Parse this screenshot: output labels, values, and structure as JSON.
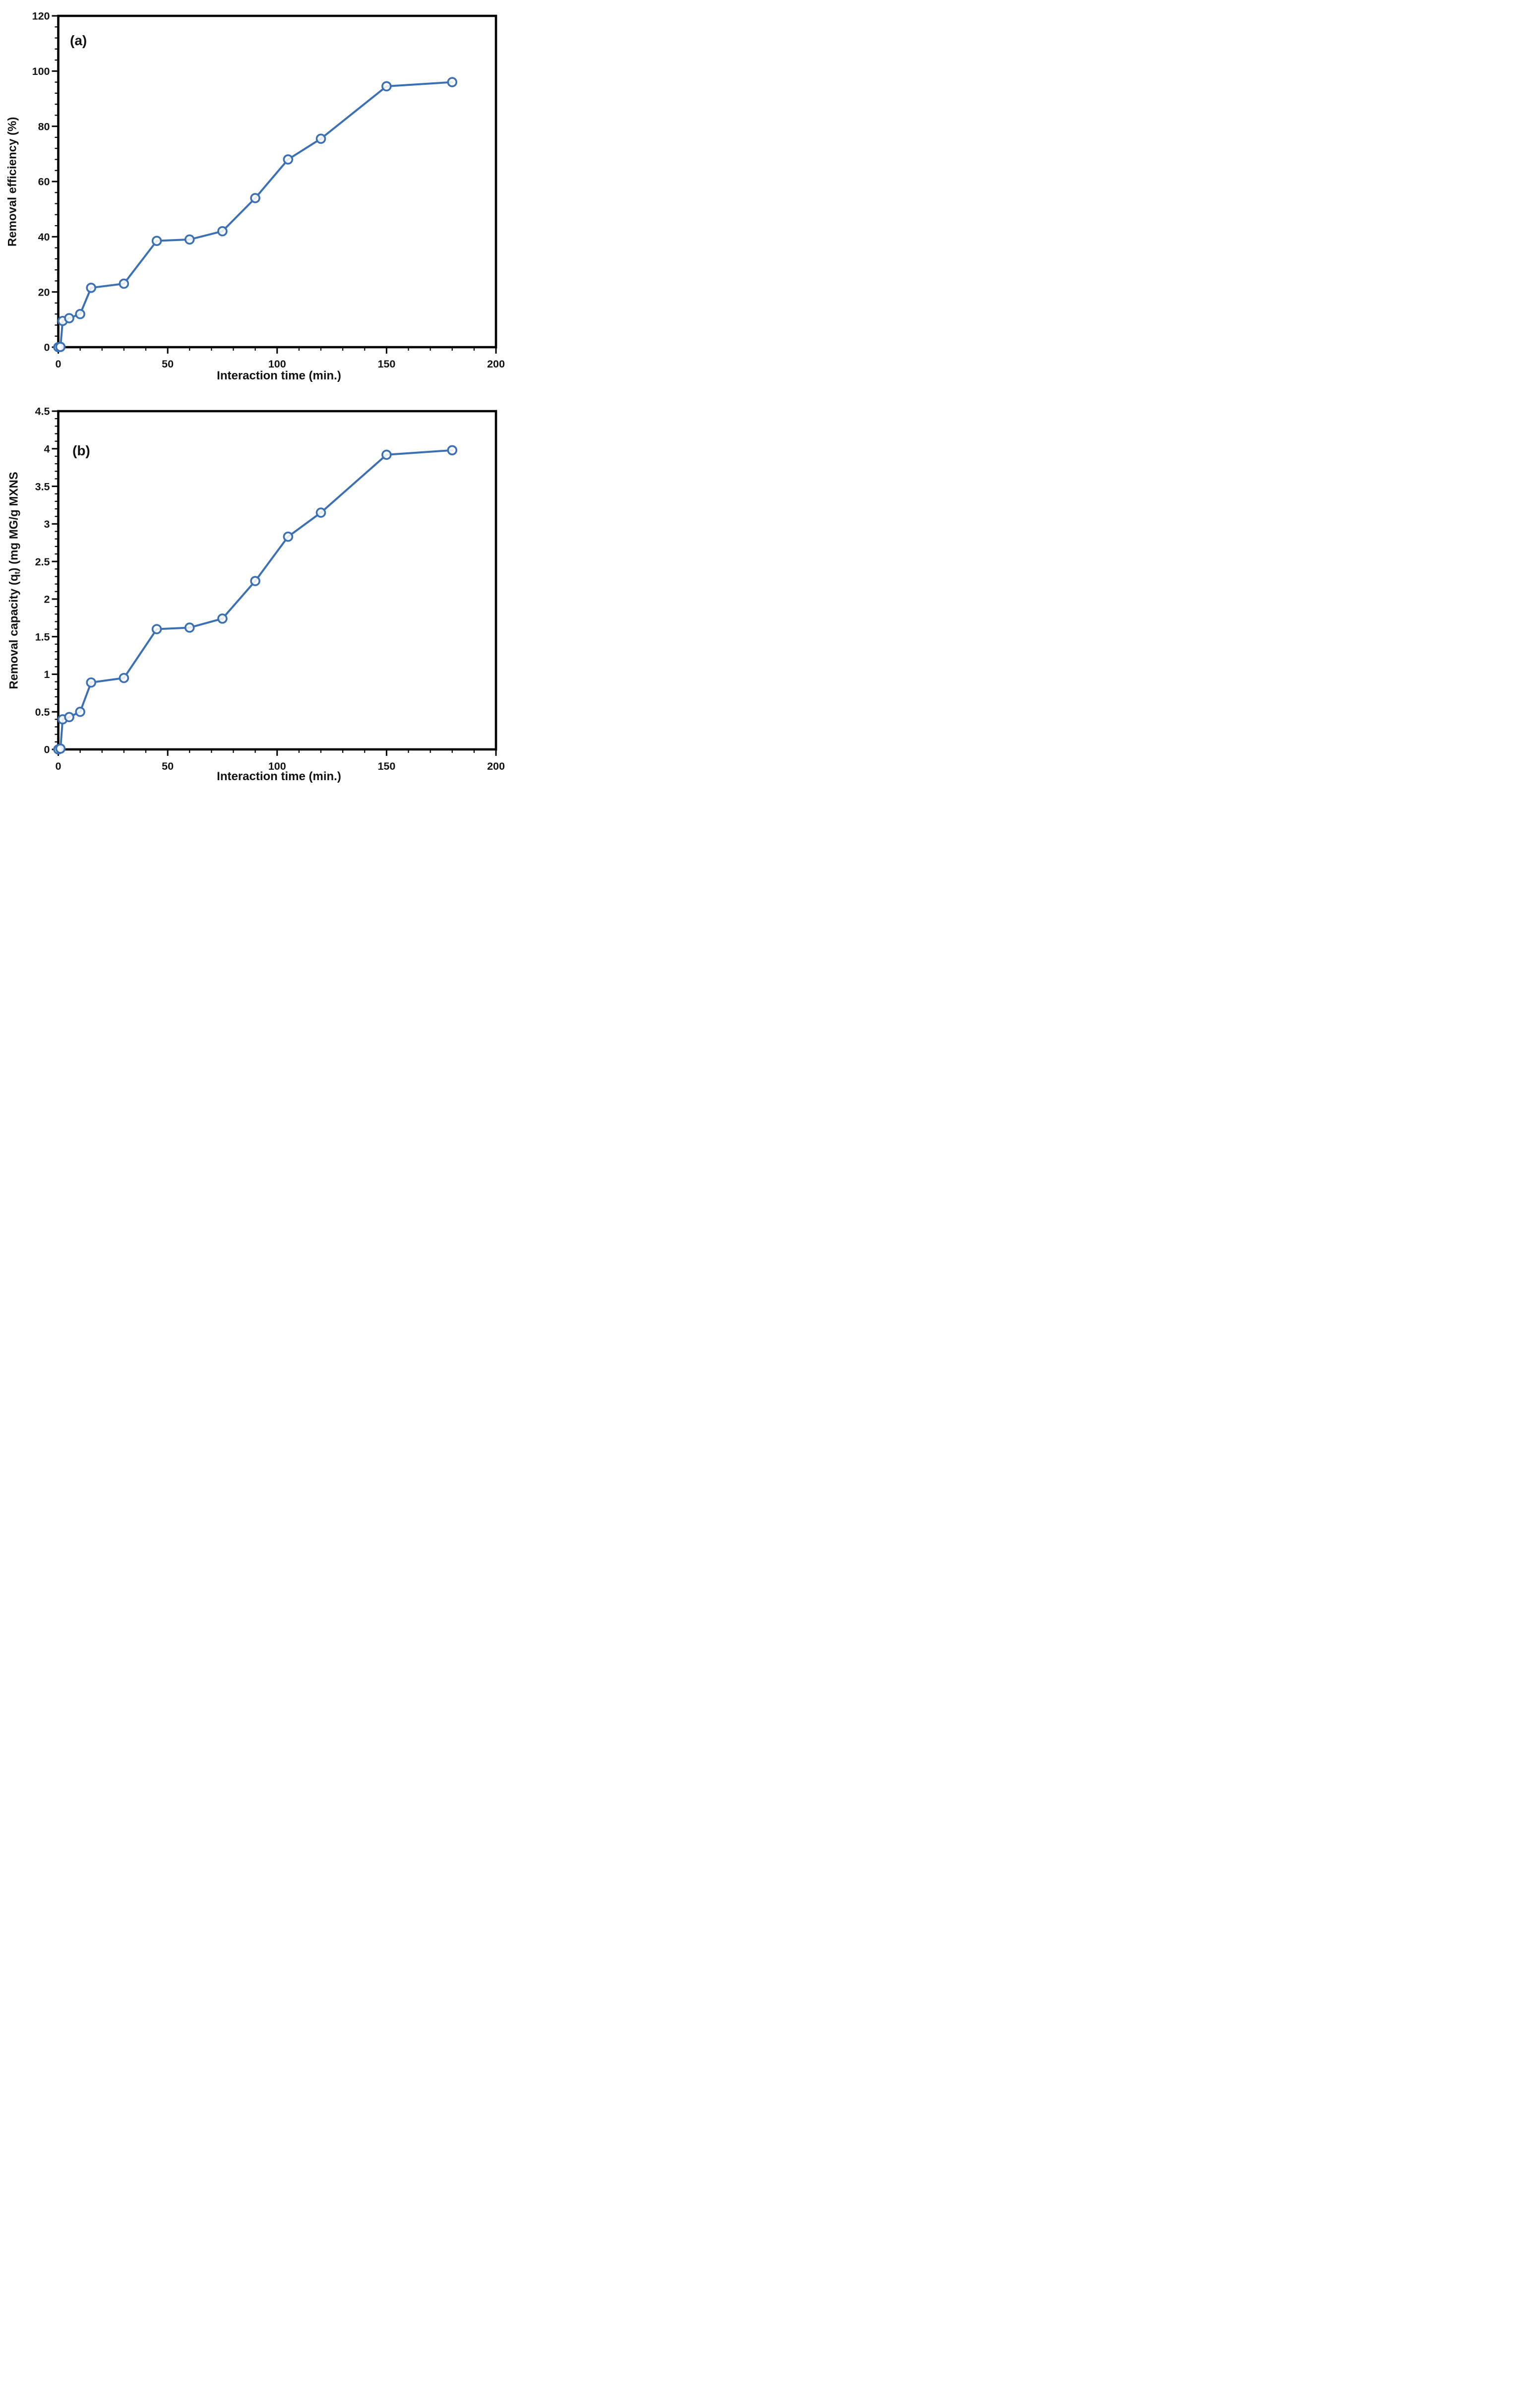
{
  "figure": {
    "background": "#ffffff",
    "frame_color": "#000000",
    "text_color": "#121212",
    "panels": [
      {
        "tag": "(a)",
        "x_title": "Interaction time (min.)",
        "y_title_prefix": "Removal efficiency (%)",
        "y_title_sub": "",
        "y_title_suffix": ""
      },
      {
        "tag": "(b)",
        "x_title": "Interaction time (min.)",
        "y_title_prefix": "Removal capacity (q",
        "y_title_sub": "t",
        "y_title_suffix": ") (mg MG/g MXNS"
      }
    ]
  },
  "chart_data": [
    {
      "type": "line",
      "panel": "(a)",
      "title": "",
      "xlabel": "Interaction time (min.)",
      "ylabel": "Removal efficiency (%)",
      "x": [
        0,
        1,
        2,
        5,
        10,
        15,
        30,
        45,
        60,
        75,
        90,
        105,
        120,
        150,
        180
      ],
      "y": [
        0,
        0.1,
        9.5,
        10.5,
        12,
        21.5,
        23,
        38.5,
        39,
        42,
        54,
        68,
        75.5,
        94.5,
        96
      ],
      "xlim": [
        0,
        200
      ],
      "ylim": [
        0,
        120
      ],
      "x_ticks": [
        0,
        50,
        100,
        150,
        200
      ],
      "x_tick_labels": [
        "0",
        "50",
        "100",
        "150",
        "200"
      ],
      "x_minor_step": 10,
      "y_ticks": [
        0,
        20,
        40,
        60,
        80,
        100,
        120
      ],
      "y_tick_labels": [
        "0",
        "20",
        "40",
        "60",
        "80",
        "100",
        "120"
      ],
      "y_minor_step": 4,
      "grid": false,
      "legend": "none",
      "line_color": "#3c70b4",
      "marker": "open-circle",
      "marker_fill": "none"
    },
    {
      "type": "line",
      "panel": "(b)",
      "title": "",
      "xlabel": "Interaction time (min.)",
      "ylabel": "Removal capacity (qt) (mg MG/g MXNS",
      "x": [
        0,
        1,
        2,
        5,
        10,
        15,
        30,
        45,
        60,
        75,
        90,
        105,
        120,
        150,
        180
      ],
      "y": [
        0,
        0.01,
        0.4,
        0.43,
        0.5,
        0.89,
        0.95,
        1.6,
        1.62,
        1.74,
        2.24,
        2.83,
        3.15,
        3.92,
        3.98
      ],
      "xlim": [
        0,
        200
      ],
      "ylim": [
        0,
        4.5
      ],
      "x_ticks": [
        0,
        50,
        100,
        150,
        200
      ],
      "x_tick_labels": [
        "0",
        "50",
        "100",
        "150",
        "200"
      ],
      "x_minor_step": 10,
      "y_ticks": [
        0,
        0.5,
        1,
        1.5,
        2,
        2.5,
        3,
        3.5,
        4,
        4.5
      ],
      "y_tick_labels": [
        "0",
        "0.5",
        "1",
        "1.5",
        "2",
        "2.5",
        "3",
        "3.5",
        "4",
        "4.5"
      ],
      "y_minor_step": 0.1,
      "grid": false,
      "legend": "none",
      "line_color": "#3c70b4",
      "marker": "open-circle",
      "marker_fill": "none"
    }
  ]
}
